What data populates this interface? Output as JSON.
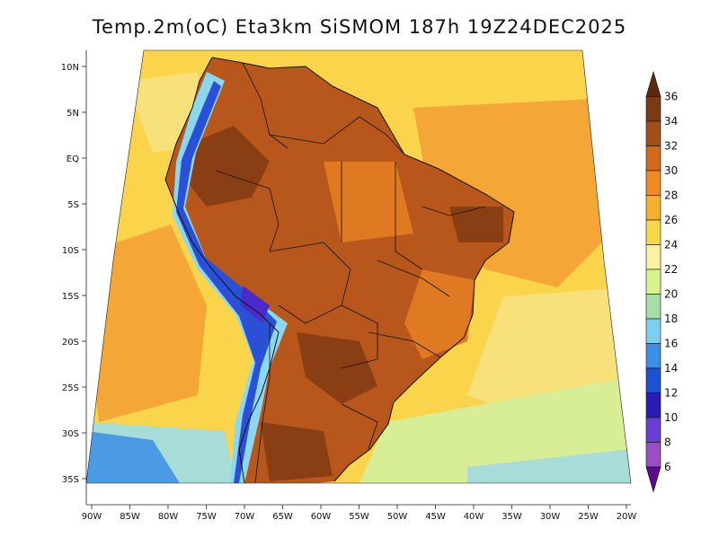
{
  "title": "Temp.2m(oC) Eta3km SiSMOM 187h 19Z24DEC2025",
  "lat_labels": [
    "10N",
    "5N",
    "EQ",
    "5S",
    "10S",
    "15S",
    "20S",
    "25S",
    "30S",
    "35S"
  ],
  "lon_labels": [
    "90W",
    "85W",
    "80W",
    "75W",
    "70W",
    "65W",
    "60W",
    "55W",
    "50W",
    "45W",
    "40W",
    "35W",
    "30W",
    "25W",
    "20W"
  ],
  "colorbar": {
    "labels": [
      "36",
      "34",
      "32",
      "30",
      "28",
      "26",
      "24",
      "22",
      "20",
      "18",
      "16",
      "14",
      "12",
      "10",
      "8",
      "6"
    ],
    "colors": [
      "#5a2a0e",
      "#7a3a14",
      "#a04e1a",
      "#d06a1e",
      "#f08a24",
      "#f6b030",
      "#f8d848",
      "#faf2a0",
      "#d8f28e",
      "#a8dca8",
      "#7ecef0",
      "#3c8fe4",
      "#1c52d0",
      "#2a1cb4",
      "#6a3ed4",
      "#9a4ec4",
      "#5a0a8a"
    ]
  },
  "map_colors": {
    "ocean_warm": "#fad44a",
    "ocean_hot": "#f4a636",
    "ocean_mild": "#f8e07a",
    "ocean_cool": "#d8ee96",
    "ocean_cold": "#a8dcd8",
    "ocean_coldest": "#4a9ae4",
    "land_hot": "#b8571c",
    "land_very_hot": "#8a3e14",
    "land_warm": "#e07a22",
    "andes_cold": "#2a50d6",
    "andes_colder": "#4a2ac8",
    "andes_cool": "#8ad8f0"
  }
}
